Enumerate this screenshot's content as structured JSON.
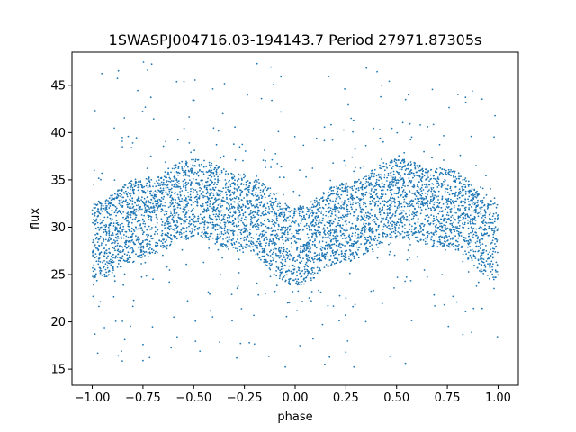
{
  "chart_data": {
    "type": "scatter",
    "title": "1SWASPJ004716.03-194143.7 Period 27971.87305s",
    "xlabel": "phase",
    "ylabel": "flux",
    "xlim": [
      -1.1,
      1.1
    ],
    "ylim": [
      13.3,
      48.5
    ],
    "x_ticks": [
      -1.0,
      -0.75,
      -0.5,
      -0.25,
      0.0,
      0.25,
      0.5,
      0.75,
      1.0
    ],
    "x_tick_labels": [
      "−1.00",
      "−0.75",
      "−0.50",
      "−0.25",
      "0.00",
      "0.25",
      "0.50",
      "0.75",
      "1.00"
    ],
    "y_ticks": [
      15,
      20,
      25,
      30,
      35,
      40,
      45
    ],
    "y_tick_labels": [
      "15",
      "20",
      "25",
      "30",
      "35",
      "40",
      "45"
    ],
    "grid": false,
    "legend": "none",
    "marker_color": "#1f77b4",
    "series": [
      {
        "x_range": [
          -1.0,
          1.0
        ],
        "description_points": [
          {
            "x": -1.0,
            "y": 28.5
          },
          {
            "x": -0.75,
            "y": 31.0
          },
          {
            "x": -0.5,
            "y": 33.0
          },
          {
            "x": -0.25,
            "y": 31.5
          },
          {
            "x": 0.0,
            "y": 28.0
          },
          {
            "x": 0.25,
            "y": 30.5
          },
          {
            "x": 0.5,
            "y": 33.0
          },
          {
            "x": 0.75,
            "y": 32.0
          },
          {
            "x": 1.0,
            "y": 28.5
          }
        ],
        "band_half_width": 4.2,
        "outlier_y_range": [
          15,
          47.5
        ]
      }
    ]
  }
}
